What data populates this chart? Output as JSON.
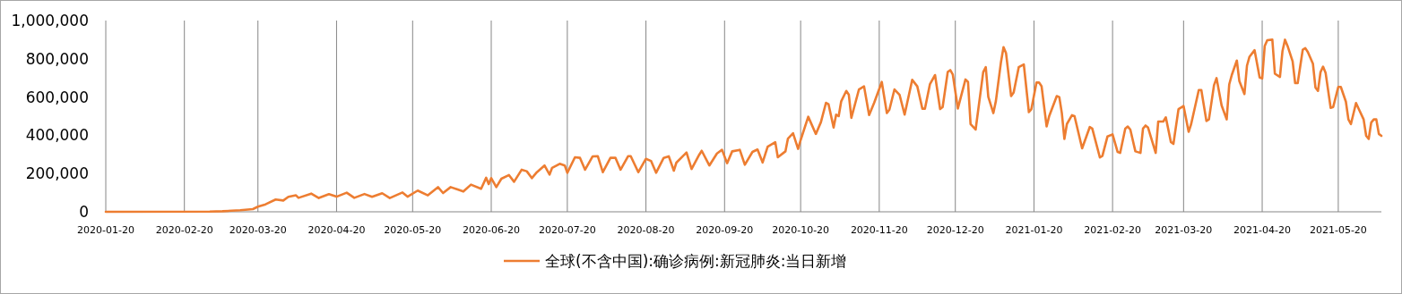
{
  "chart_data": {
    "type": "line",
    "x": [
      "2020-01-20",
      "2020-03-01",
      "2020-03-06",
      "2020-03-13",
      "2020-03-18",
      "2020-03-20",
      "2020-03-23",
      "2020-03-27",
      "2020-03-30",
      "2020-04-01",
      "2020-04-04",
      "2020-04-05",
      "2020-04-10",
      "2020-04-13",
      "2020-04-17",
      "2020-04-20",
      "2020-04-24",
      "2020-04-27",
      "2020-05-01",
      "2020-05-04",
      "2020-05-08",
      "2020-05-11",
      "2020-05-16",
      "2020-05-18",
      "2020-05-22",
      "2020-05-26",
      "2020-05-30",
      "2020-06-01",
      "2020-06-04",
      "2020-06-09",
      "2020-06-12",
      "2020-06-16",
      "2020-06-18",
      "2020-06-19",
      "2020-06-20",
      "2020-06-22",
      "2020-06-24",
      "2020-06-27",
      "2020-06-29",
      "2020-07-02",
      "2020-07-04",
      "2020-07-06",
      "2020-07-08",
      "2020-07-11",
      "2020-07-13",
      "2020-07-14",
      "2020-07-17",
      "2020-07-19",
      "2020-07-20",
      "2020-07-23",
      "2020-07-25",
      "2020-07-27",
      "2020-07-30",
      "2020-08-01",
      "2020-08-03",
      "2020-08-06",
      "2020-08-08",
      "2020-08-10",
      "2020-08-13",
      "2020-08-14",
      "2020-08-17",
      "2020-08-20",
      "2020-08-22",
      "2020-08-24",
      "2020-08-27",
      "2020-08-29",
      "2020-08-31",
      "2020-09-01",
      "2020-09-05",
      "2020-09-07",
      "2020-09-10",
      "2020-09-11",
      "2020-09-14",
      "2020-09-17",
      "2020-09-19",
      "2020-09-21",
      "2020-09-23",
      "2020-09-26",
      "2020-09-28",
      "2020-10-01",
      "2020-10-03",
      "2020-10-05",
      "2020-10-07",
      "2020-10-10",
      "2020-10-11",
      "2020-10-14",
      "2020-10-15",
      "2020-10-17",
      "2020-10-19",
      "2020-10-20",
      "2020-10-23",
      "2020-10-26",
      "2020-10-28",
      "2020-10-30",
      "2020-10-31",
      "2020-11-02",
      "2020-11-03",
      "2020-11-04",
      "2020-11-05",
      "2020-11-07",
      "2020-11-08",
      "2020-11-09",
      "2020-11-12",
      "2020-11-14",
      "2020-11-16",
      "2020-11-18",
      "2020-11-21",
      "2020-11-23",
      "2020-11-24",
      "2020-11-26",
      "2020-11-28",
      "2020-11-30",
      "2020-12-03",
      "2020-12-05",
      "2020-12-07",
      "2020-12-08",
      "2020-12-10",
      "2020-12-12",
      "2020-12-14",
      "2020-12-15",
      "2020-12-17",
      "2020-12-18",
      "2020-12-19",
      "2020-12-21",
      "2020-12-24",
      "2020-12-25",
      "2020-12-26",
      "2020-12-28",
      "2020-12-31",
      "2021-01-01",
      "2021-01-02",
      "2021-01-04",
      "2021-01-05",
      "2021-01-07",
      "2021-01-08",
      "2021-01-09",
      "2021-01-11",
      "2021-01-12",
      "2021-01-14",
      "2021-01-16",
      "2021-01-18",
      "2021-01-19",
      "2021-01-21",
      "2021-01-22",
      "2021-01-23",
      "2021-01-25",
      "2021-01-26",
      "2021-01-29",
      "2021-01-30",
      "2021-01-31",
      "2021-02-01",
      "2021-02-02",
      "2021-02-04",
      "2021-02-05",
      "2021-02-08",
      "2021-02-11",
      "2021-02-12",
      "2021-02-15",
      "2021-02-16",
      "2021-02-18",
      "2021-02-20",
      "2021-02-22",
      "2021-02-23",
      "2021-02-25",
      "2021-02-26",
      "2021-02-27",
      "2021-03-01",
      "2021-03-03",
      "2021-03-04",
      "2021-03-05",
      "2021-03-06",
      "2021-03-09",
      "2021-03-10",
      "2021-03-12",
      "2021-03-13",
      "2021-03-15",
      "2021-03-16",
      "2021-03-18",
      "2021-03-20",
      "2021-03-22",
      "2021-03-23",
      "2021-03-26",
      "2021-03-27",
      "2021-03-29",
      "2021-03-30",
      "2021-04-01",
      "2021-04-02",
      "2021-04-04",
      "2021-04-06",
      "2021-04-07",
      "2021-04-08",
      "2021-04-10",
      "2021-04-11",
      "2021-04-13",
      "2021-04-14",
      "2021-04-15",
      "2021-04-17",
      "2021-04-19",
      "2021-04-20",
      "2021-04-21",
      "2021-04-22",
      "2021-04-24",
      "2021-04-25",
      "2021-04-27",
      "2021-04-28",
      "2021-04-29",
      "2021-04-30",
      "2021-05-02",
      "2021-05-03",
      "2021-05-04",
      "2021-05-06",
      "2021-05-07",
      "2021-05-08",
      "2021-05-10",
      "2021-05-11",
      "2021-05-12",
      "2021-05-13",
      "2021-05-14",
      "2021-05-15",
      "2021-05-17",
      "2021-05-18",
      "2021-05-20",
      "2021-05-21",
      "2021-05-23",
      "2021-05-24",
      "2021-05-25",
      "2021-05-27",
      "2021-05-28",
      "2021-05-30",
      "2021-05-31",
      "2021-06-01",
      "2021-06-02",
      "2021-06-03",
      "2021-06-04",
      "2021-06-05",
      "2021-06-06"
    ],
    "series": [
      {
        "name": "全球(不含中国):确诊病例:新冠肺炎:当日新增",
        "color": "#ed7d31",
        "values": [
          0,
          1000,
          3000,
          8000,
          14000,
          27000,
          39000,
          64000,
          59000,
          78000,
          86000,
          73000,
          95000,
          72000,
          92000,
          79000,
          100000,
          73000,
          93000,
          78000,
          97000,
          72000,
          101000,
          79000,
          111000,
          86000,
          129000,
          98000,
          129000,
          106000,
          142000,
          120000,
          178000,
          145000,
          176000,
          129000,
          173000,
          192000,
          157000,
          220000,
          212000,
          176000,
          207000,
          242000,
          195000,
          230000,
          251000,
          242000,
          204000,
          285000,
          282000,
          220000,
          290000,
          291000,
          207000,
          282000,
          282000,
          220000,
          291000,
          291000,
          207000,
          277000,
          266000,
          204000,
          282000,
          290000,
          215000,
          257000,
          310000,
          224000,
          298000,
          319000,
          242000,
          305000,
          324000,
          254000,
          316000,
          324000,
          246000,
          313000,
          326000,
          258000,
          341000,
          364000,
          285000,
          316000,
          383000,
          411000,
          329000,
          375000,
          497000,
          407000,
          469000,
          570000,
          562000,
          441000,
          508000,
          500000,
          578000,
          632000,
          612000,
          491000,
          640000,
          656000,
          506000,
          570000,
          679000,
          516000,
          534000,
          640000,
          612000,
          508000,
          690000,
          656000,
          539000,
          539000,
          668000,
          715000,
          537000,
          548000,
          731000,
          741000,
          718000,
          540000,
          692000,
          679000,
          459000,
          430000,
          731000,
          756000,
          601000,
          516000,
          580000,
          783000,
          861000,
          829000,
          605000,
          624000,
          756000,
          770000,
          521000,
          537000,
          676000,
          676000,
          657000,
          446000,
          500000,
          605000,
          600000,
          516000,
          381000,
          459000,
          505000,
          500000,
          332000,
          443000,
          435000,
          284000,
          293000,
          394000,
          405000,
          313000,
          308000,
          435000,
          446000,
          430000,
          316000,
          308000,
          435000,
          451000,
          440000,
          308000,
          472000,
          472000,
          494000,
          365000,
          355000,
          537000,
          553000,
          418000,
          459000,
          637000,
          637000,
          475000,
          483000,
          662000,
          699000,
          556000,
          483000,
          666000,
          715000,
          791000,
          683000,
          616000,
          764000,
          811000,
          845000,
          702000,
          697000,
          867000,
          897000,
          900000,
          722000,
          705000,
          840000,
          900000,
          867000,
          787000,
          673000,
          673000,
          848000,
          856000,
          835000,
          775000,
          650000,
          632000,
          730000,
          759000,
          727000,
          543000,
          548000,
          653000,
          653000,
          576000,
          483000,
          459000,
          569000,
          540000,
          483000,
          397000,
          381000,
          467000,
          483000,
          483000,
          407000,
          397000
        ]
      }
    ],
    "xlim": [
      "2020-01-20",
      "2021-06-06"
    ],
    "xticks": [
      "2020-01-20",
      "2020-02-20",
      "2020-03-20",
      "2020-04-20",
      "2020-05-20",
      "2020-06-20",
      "2020-07-20",
      "2020-08-20",
      "2020-09-20",
      "2020-10-20",
      "2020-11-20",
      "2020-12-20",
      "2021-01-20",
      "2021-02-20",
      "2021-03-20",
      "2021-04-20",
      "2021-05-20"
    ],
    "ylim": [
      0,
      1000000
    ],
    "yticks": [
      0,
      {
        "value": 200000,
        "label": "200,000"
      },
      {
        "value": 400000,
        "label": "400,000"
      },
      {
        "value": 600000,
        "label": "600,000"
      },
      {
        "value": 800000,
        "label": "800,000"
      },
      {
        "value": 1000000,
        "label": "1,000,000"
      }
    ],
    "grid": "x",
    "legend": "bottom",
    "line_style": "solid"
  }
}
